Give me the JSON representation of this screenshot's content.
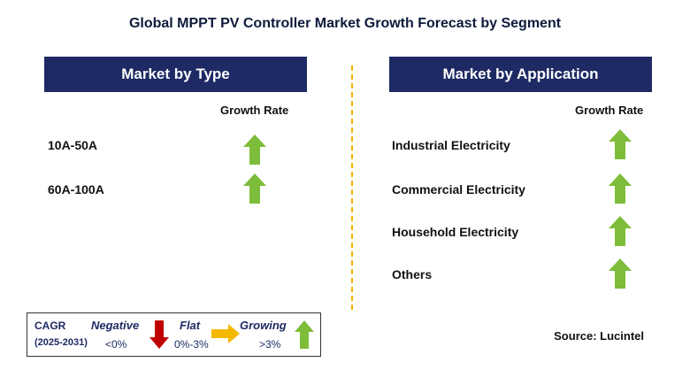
{
  "title": "Global MPPT PV Controller Market Growth Forecast by Segment",
  "type_panel": {
    "header": "Market by Type",
    "growth_rate_label": "Growth Rate",
    "items": [
      {
        "label": "10A-50A",
        "trend": "growing"
      },
      {
        "label": "60A-100A",
        "trend": "growing"
      }
    ]
  },
  "application_panel": {
    "header": "Market by Application",
    "growth_rate_label": "Growth Rate",
    "items": [
      {
        "label": "Industrial Electricity",
        "trend": "growing"
      },
      {
        "label": "Commercial Electricity",
        "trend": "growing"
      },
      {
        "label": "Household Electricity",
        "trend": "growing"
      },
      {
        "label": "Others",
        "trend": "growing"
      }
    ]
  },
  "legend": {
    "cagr_label": "CAGR",
    "period": "(2025-2031)",
    "negative_label": "Negative",
    "negative_range": "<0%",
    "flat_label": "Flat",
    "flat_range": "0%-3%",
    "growing_label": "Growing",
    "growing_range": ">3%"
  },
  "source": "Source: Lucintel",
  "colors": {
    "header_bg": "#1e2a63",
    "growing": "#7dbd3a",
    "negative": "#c00000",
    "flat": "#f5b800",
    "divider": "#f2b400"
  }
}
